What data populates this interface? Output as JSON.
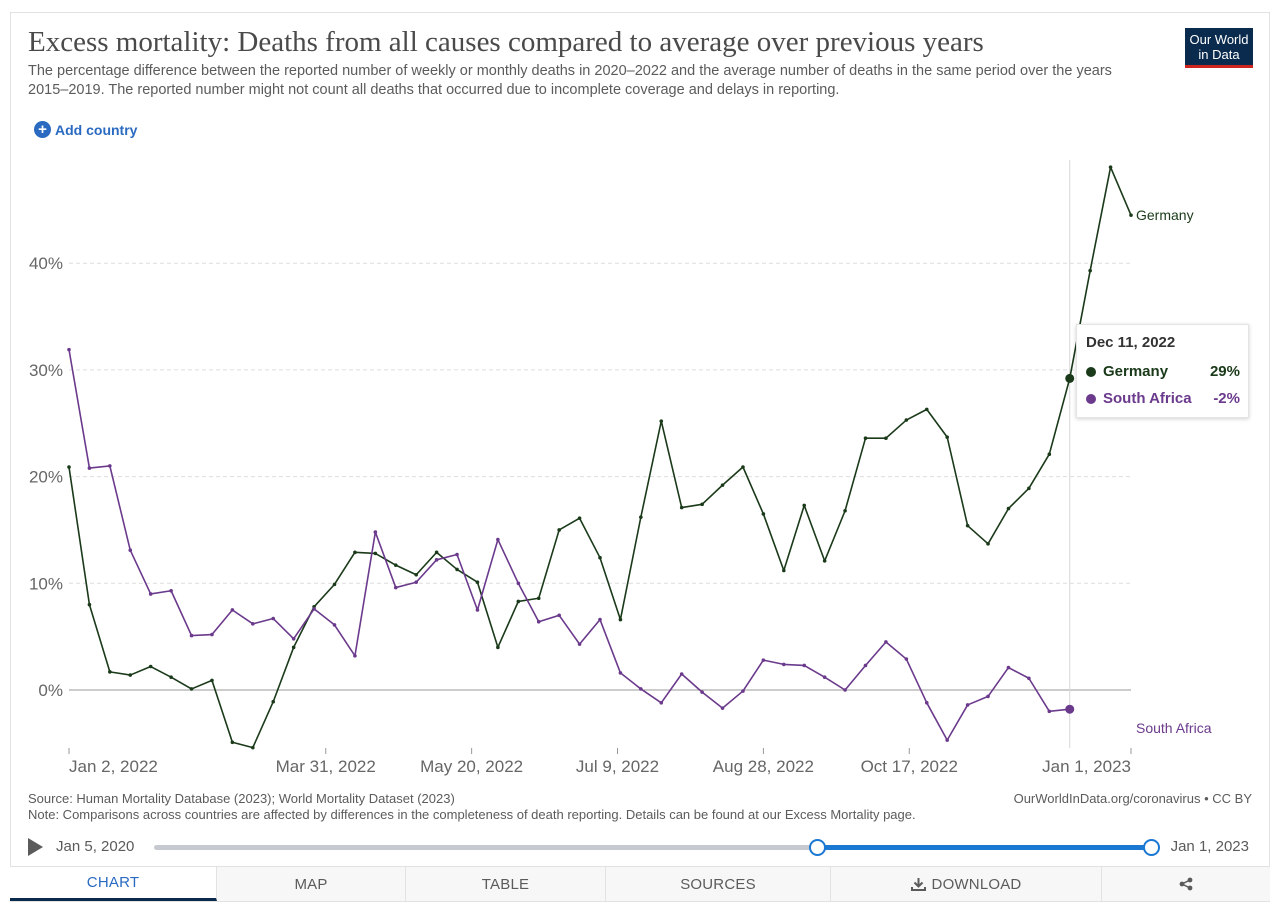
{
  "header": {
    "title": "Excess mortality: Deaths from all causes compared to average over previous years",
    "subtitle": "The percentage difference between the reported number of weekly or monthly deaths in 2020–2022 and the average number of deaths in the same period over the years 2015–2019. The reported number might not count all deaths that occurred due to incomplete coverage and delays in reporting.",
    "logo_line1": "Our World",
    "logo_line2": "in Data"
  },
  "controls": {
    "add_country": "Add country"
  },
  "tooltip": {
    "date": "Dec 11, 2022",
    "rows": [
      {
        "name": "Germany",
        "value": "29%",
        "color": "#1a3a1a"
      },
      {
        "name": "South Africa",
        "value": "-2%",
        "color": "#6b3a8c"
      }
    ]
  },
  "footer": {
    "source": "Source: Human Mortality Database (2023); World Mortality Dataset (2023)",
    "note": "Note: Comparisons across countries are affected by differences in the completeness of death reporting. Details can be found at our Excess Mortality page.",
    "credit": "OurWorldInData.org/coronavirus • CC BY"
  },
  "timeline": {
    "start": "Jan 5, 2020",
    "end": "Jan 1, 2023",
    "range_start_fraction": 0.665,
    "range_end_fraction": 1.0
  },
  "tabs": [
    {
      "label": "CHART",
      "active": true
    },
    {
      "label": "MAP",
      "active": false
    },
    {
      "label": "TABLE",
      "active": false
    },
    {
      "label": "SOURCES",
      "active": false
    },
    {
      "label": "DOWNLOAD",
      "active": false,
      "icon": "download-icon"
    },
    {
      "label": "",
      "active": false,
      "icon": "share-icon"
    }
  ],
  "chart_data": {
    "type": "line",
    "x_start": "2022-01-02",
    "x_step_days": 7,
    "x_ticks": [
      "Jan 2, 2022",
      "Mar 31, 2022",
      "May 20, 2022",
      "Jul 9, 2022",
      "Aug 28, 2022",
      "Oct 17, 2022",
      "Jan 1, 2023"
    ],
    "y_ticks": [
      "0%",
      "10%",
      "20%",
      "30%",
      "40%"
    ],
    "ylim": [
      -5.5,
      50
    ],
    "grid": "horizontal dashed",
    "highlight": {
      "date": "Dec 11, 2022"
    },
    "series": [
      {
        "name": "Germany",
        "color": "#1a3a1a",
        "values": [
          20.9,
          8.0,
          1.7,
          1.4,
          2.2,
          1.2,
          0.1,
          0.9,
          -4.9,
          -5.4,
          -1.1,
          4.0,
          7.8,
          9.9,
          12.9,
          12.8,
          11.7,
          10.8,
          12.9,
          11.3,
          10.1,
          4.0,
          8.3,
          8.6,
          15.0,
          16.1,
          12.4,
          6.6,
          16.2,
          25.2,
          17.1,
          17.4,
          19.2,
          20.9,
          16.5,
          11.2,
          17.3,
          12.1,
          16.8,
          23.6,
          23.6,
          25.3,
          26.3,
          23.7,
          15.4,
          13.7,
          17.0,
          18.9,
          22.1,
          29.2,
          39.3,
          49.0,
          44.5
        ]
      },
      {
        "name": "South Africa",
        "color": "#6b3a8c",
        "values": [
          31.9,
          20.8,
          21.0,
          13.1,
          9.0,
          9.3,
          5.1,
          5.2,
          7.5,
          6.2,
          6.7,
          4.8,
          7.6,
          6.1,
          3.2,
          14.8,
          9.6,
          10.1,
          12.2,
          12.7,
          7.5,
          14.1,
          10.0,
          6.4,
          7.0,
          4.3,
          6.6,
          1.6,
          0.1,
          -1.2,
          1.5,
          -0.2,
          -1.7,
          -0.1,
          2.8,
          2.4,
          2.3,
          1.2,
          0.0,
          2.3,
          4.5,
          2.9,
          -1.2,
          -4.7,
          -1.4,
          -0.6,
          2.1,
          1.1,
          -2.0,
          -1.8
        ]
      }
    ]
  }
}
